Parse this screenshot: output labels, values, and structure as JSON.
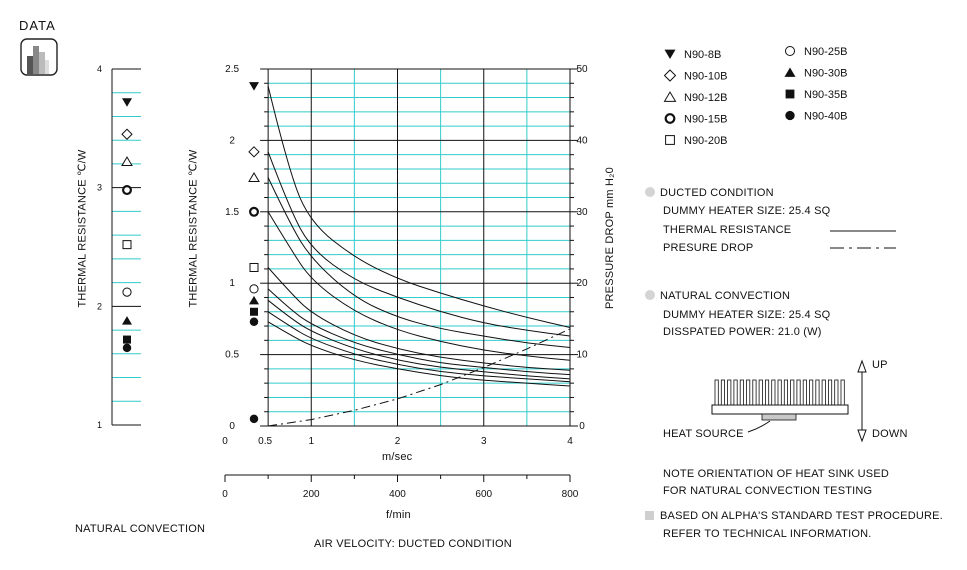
{
  "header": {
    "label": "DATA"
  },
  "chart_data": [
    {
      "type": "scatter",
      "title": "",
      "ylabel": "THERMAL RESISTANCE ℃/W",
      "xlabel": "NATURAL CONVECTION",
      "ylim": [
        1,
        4
      ],
      "ticks": [
        "1",
        "2",
        "3",
        "4"
      ],
      "series": [
        {
          "name": "N90-8B",
          "marker": "tri-down",
          "value": 3.72
        },
        {
          "name": "N90-10B",
          "marker": "diamond",
          "value": 3.45
        },
        {
          "name": "N90-12B",
          "marker": "tri-up-open",
          "value": 3.22
        },
        {
          "name": "N90-15B",
          "marker": "ring",
          "value": 2.98
        },
        {
          "name": "N90-20B",
          "marker": "square-open",
          "value": 2.52
        },
        {
          "name": "N90-25B",
          "marker": "circle-open",
          "value": 2.12
        },
        {
          "name": "N90-30B",
          "marker": "tri-up",
          "value": 1.88
        },
        {
          "name": "N90-35B",
          "marker": "square",
          "value": 1.72
        },
        {
          "name": "N90-40B",
          "marker": "circle",
          "value": 1.65
        }
      ]
    },
    {
      "type": "line",
      "title": "",
      "caption": "AIR VELOCITY:  DUCTED CONDITION",
      "xlabel": "m/sec",
      "xlabel2": "f/min",
      "ylabel": "THERMAL RESISTANCE ℃/W",
      "ylabel2": "PRESSURE DROP  mm H₂0",
      "xlim": [
        0,
        4
      ],
      "ylim": [
        0,
        2.5
      ],
      "y2lim": [
        0,
        50
      ],
      "xticks": [
        "0",
        "0.5",
        "1",
        "2",
        "3",
        "4"
      ],
      "x2ticks": [
        "0",
        "200",
        "400",
        "600",
        "800"
      ],
      "yticks": [
        "0",
        "0.5",
        "1",
        "1.5",
        "2",
        "2.5"
      ],
      "y2ticks": [
        "0",
        "10",
        "20",
        "30",
        "40",
        "50"
      ],
      "grid": true,
      "series": [
        {
          "name": "N90-8B",
          "marker": "tri-down",
          "x": [
            0.5,
            0.75,
            1,
            1.5,
            2,
            2.5,
            3,
            3.5,
            4
          ],
          "y": [
            2.38,
            1.76,
            1.42,
            1.18,
            1.03,
            0.93,
            0.84,
            0.76,
            0.69
          ]
        },
        {
          "name": "N90-10B",
          "marker": "diamond",
          "x": [
            0.5,
            0.75,
            1,
            1.5,
            2,
            2.5,
            3,
            3.5,
            4
          ],
          "y": [
            1.92,
            1.52,
            1.24,
            1.02,
            0.9,
            0.8,
            0.72,
            0.67,
            0.63
          ]
        },
        {
          "name": "N90-12B",
          "marker": "tri-up-open",
          "x": [
            0.5,
            0.75,
            1,
            1.5,
            2,
            2.5,
            3,
            3.5,
            4
          ],
          "y": [
            1.74,
            1.42,
            1.17,
            0.9,
            0.76,
            0.68,
            0.63,
            0.58,
            0.55
          ]
        },
        {
          "name": "N90-15B",
          "marker": "ring",
          "x": [
            0.5,
            0.75,
            1,
            1.5,
            2,
            2.5,
            3,
            3.5,
            4
          ],
          "y": [
            1.5,
            1.25,
            1.02,
            0.8,
            0.67,
            0.59,
            0.53,
            0.49,
            0.46
          ]
        },
        {
          "name": "N90-20B",
          "marker": "square-open",
          "x": [
            0.5,
            0.75,
            1,
            1.5,
            2,
            2.5,
            3,
            3.5,
            4
          ],
          "y": [
            1.11,
            0.94,
            0.79,
            0.63,
            0.54,
            0.48,
            0.44,
            0.41,
            0.39
          ]
        },
        {
          "name": "N90-25B",
          "marker": "circle-open",
          "x": [
            0.5,
            0.75,
            1,
            1.5,
            2,
            2.5,
            3,
            3.5,
            4
          ],
          "y": [
            0.96,
            0.82,
            0.71,
            0.58,
            0.5,
            0.44,
            0.41,
            0.38,
            0.36
          ]
        },
        {
          "name": "N90-30B",
          "marker": "tri-up",
          "x": [
            0.5,
            0.75,
            1,
            1.5,
            2,
            2.5,
            3,
            3.5,
            4
          ],
          "y": [
            0.88,
            0.76,
            0.66,
            0.54,
            0.46,
            0.41,
            0.38,
            0.35,
            0.33
          ]
        },
        {
          "name": "N90-35B",
          "marker": "square",
          "x": [
            0.5,
            0.75,
            1,
            1.5,
            2,
            2.5,
            3,
            3.5,
            4
          ],
          "y": [
            0.8,
            0.7,
            0.61,
            0.5,
            0.43,
            0.38,
            0.35,
            0.33,
            0.31
          ]
        },
        {
          "name": "N90-40B",
          "marker": "circle",
          "x": [
            0.5,
            0.75,
            1,
            1.5,
            2,
            2.5,
            3,
            3.5,
            4
          ],
          "y": [
            0.73,
            0.64,
            0.56,
            0.46,
            0.4,
            0.35,
            0.32,
            0.3,
            0.28
          ]
        },
        {
          "name": "PRESURE DROP",
          "style": "dash-dot",
          "axis": "y2",
          "x": [
            0.5,
            1,
            1.5,
            2,
            2.5,
            3,
            3.5,
            4
          ],
          "y": [
            0,
            0.9,
            2.2,
            3.8,
            5.8,
            8.2,
            10.8,
            13.6
          ]
        }
      ],
      "pressure_marker": {
        "name": "N90-40B",
        "marker": "circle",
        "y": 0.05
      }
    }
  ],
  "legend": {
    "col1": [
      {
        "name": "N90-8B",
        "marker": "tri-down"
      },
      {
        "name": "N90-10B",
        "marker": "diamond"
      },
      {
        "name": "N90-12B",
        "marker": "tri-up-open"
      },
      {
        "name": "N90-15B",
        "marker": "ring"
      },
      {
        "name": "N90-20B",
        "marker": "square-open"
      }
    ],
    "col2": [
      {
        "name": "N90-25B",
        "marker": "circle-open"
      },
      {
        "name": "N90-30B",
        "marker": "tri-up"
      },
      {
        "name": "N90-35B",
        "marker": "square"
      },
      {
        "name": "N90-40B",
        "marker": "circle"
      }
    ]
  },
  "notes": {
    "ducted_title": "DUCTED CONDITION",
    "ducted_heater": "DUMMY HEATER SIZE: 25.4 SQ",
    "thermal_resistance": "THERMAL RESISTANCE",
    "pressure_drop": "PRESURE DROP",
    "natural_title": "NATURAL CONVECTION",
    "natural_heater": "DUMMY HEATER SIZE: 25.4 SQ",
    "dissipated_power": "DISSPATED POWER:  21.0 (W)",
    "up": "UP",
    "down": "DOWN",
    "heat_source": "HEAT SOURCE",
    "orientation_1": "NOTE ORIENTATION OF HEAT SINK USED",
    "orientation_2": "FOR NATURAL CONVECTION TESTING",
    "based_1": "BASED ON ALPHA'S STANDARD TEST PROCEDURE.",
    "based_2": "REFER TO TECHNICAL INFORMATION."
  },
  "colors": {
    "grid": "#33cccc",
    "ink": "#111111",
    "bullet": "#d4d4d4"
  }
}
